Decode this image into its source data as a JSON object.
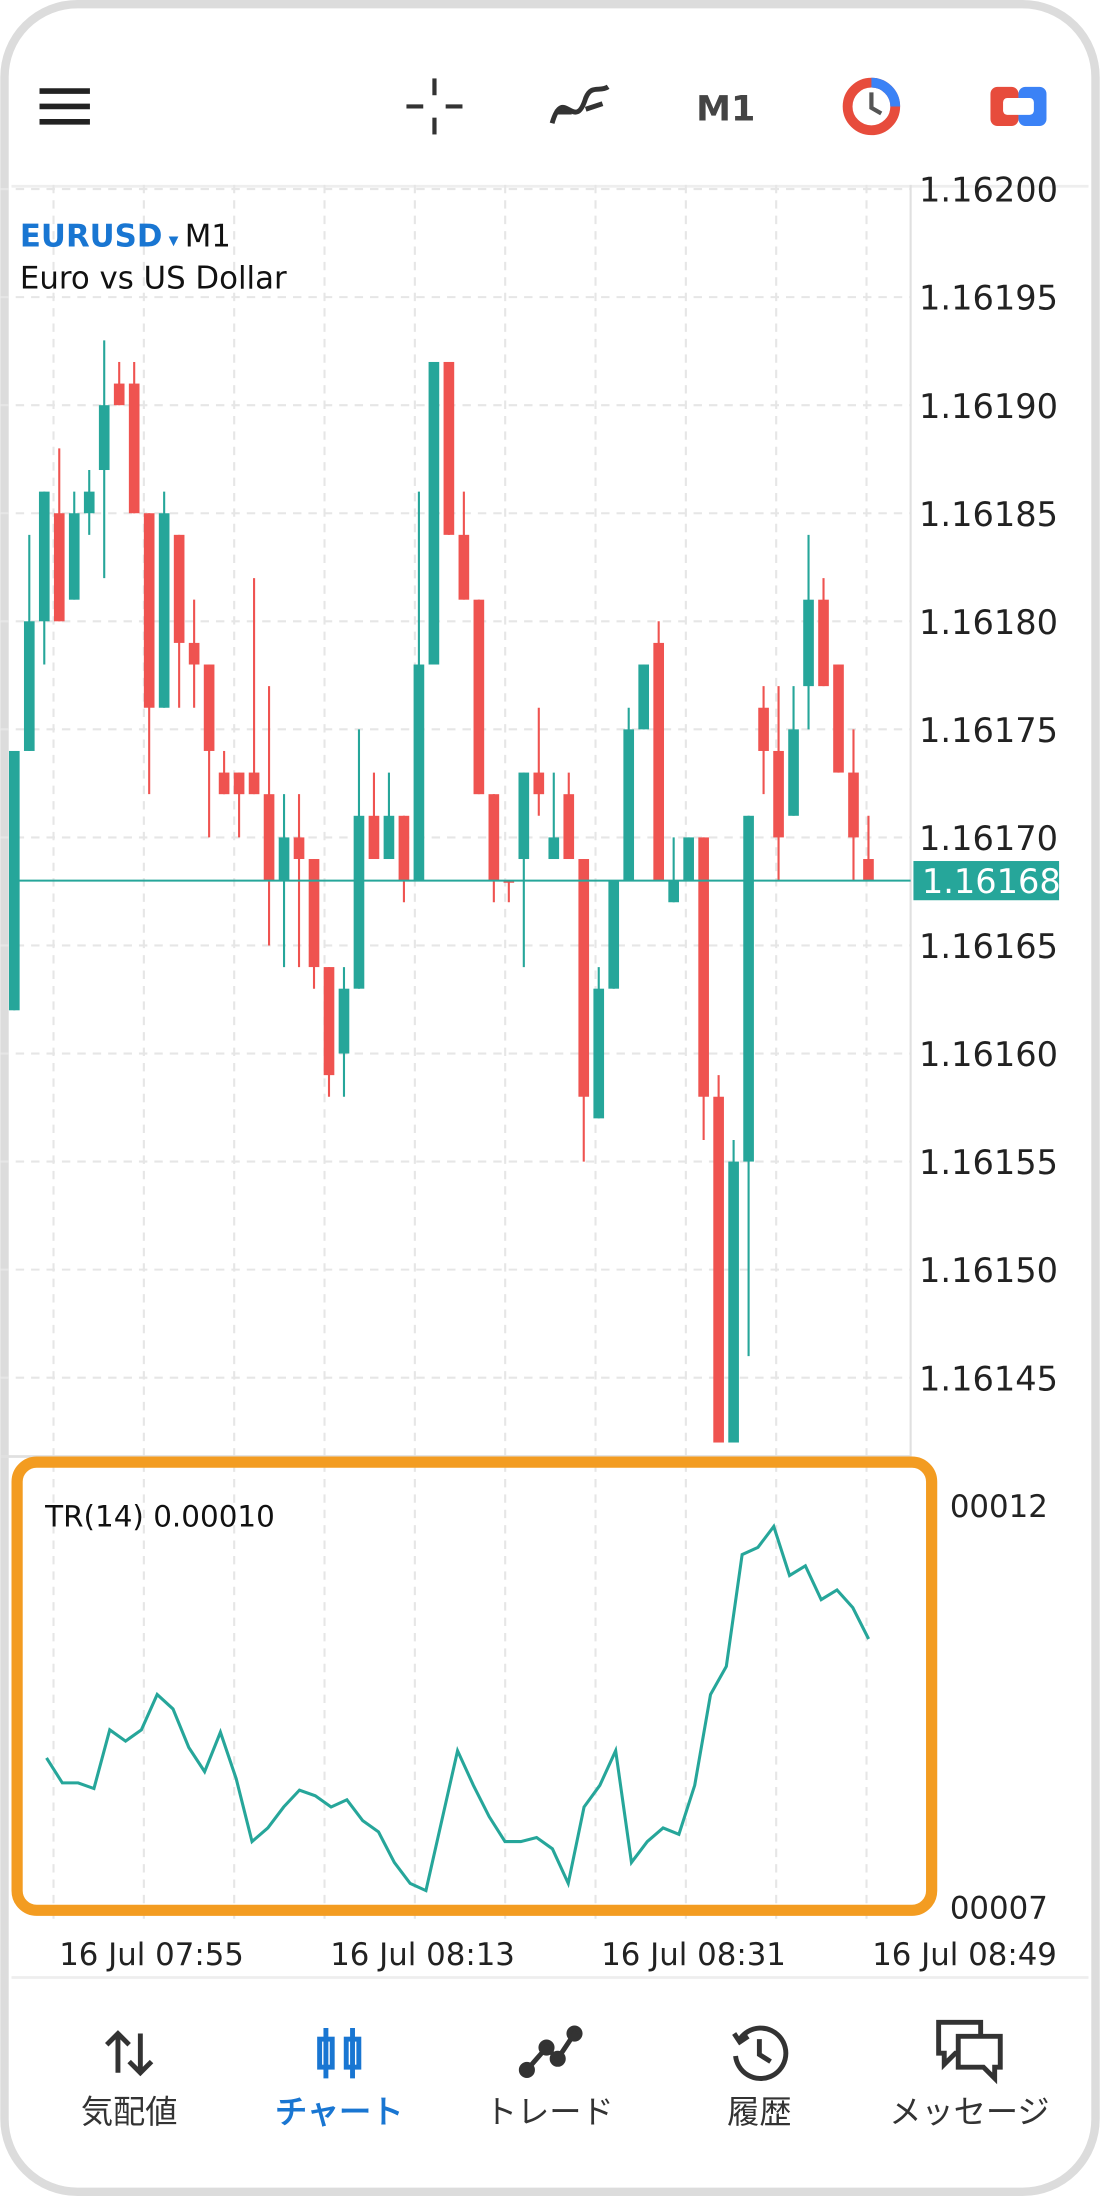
{
  "header": {
    "timeframe": "M1"
  },
  "chart": {
    "type": "candlestick",
    "symbol": "EURUSD",
    "timeframe": "M1",
    "description": "Euro vs US Dollar",
    "up_color": "#26a69a",
    "down_color": "#ef5350",
    "open": [
      1.16162,
      1.16174,
      1.1618,
      1.16185,
      1.16181,
      1.16185,
      1.16187,
      1.16191,
      1.16191,
      1.16185,
      1.16176,
      1.16184,
      1.16179,
      1.16178,
      1.16173,
      1.16173,
      1.16173,
      1.16172,
      1.16168,
      1.1617,
      1.16169,
      1.16164,
      1.1616,
      1.16163,
      1.16171,
      1.16169,
      1.16171,
      1.16168,
      1.16178,
      1.16192,
      1.16184,
      1.16181,
      1.16172,
      1.16168,
      1.16169,
      1.16173,
      1.16169,
      1.16172,
      1.16169,
      1.16157,
      1.16163,
      1.16168,
      1.16175,
      1.16179,
      1.16167,
      1.16168,
      1.1617,
      1.16158,
      1.16142,
      1.16155,
      1.16176,
      1.16174,
      1.16171,
      1.16177,
      1.16181,
      1.16178,
      1.16173,
      1.16169
    ],
    "high": [
      1.16174,
      1.16184,
      1.16186,
      1.16188,
      1.16186,
      1.16187,
      1.16193,
      1.16192,
      1.16192,
      1.16185,
      1.16186,
      1.16184,
      1.16181,
      1.16178,
      1.16174,
      1.16173,
      1.16182,
      1.16177,
      1.16172,
      1.16172,
      1.16169,
      1.16164,
      1.16164,
      1.16175,
      1.16173,
      1.16173,
      1.16171,
      1.16186,
      1.16192,
      1.16192,
      1.16186,
      1.16181,
      1.16172,
      1.16168,
      1.16173,
      1.16176,
      1.16173,
      1.16173,
      1.16169,
      1.16164,
      1.16168,
      1.16176,
      1.16178,
      1.1618,
      1.1617,
      1.1617,
      1.1617,
      1.16159,
      1.16156,
      1.16171,
      1.16177,
      1.16177,
      1.16177,
      1.16184,
      1.16182,
      1.16178,
      1.16175,
      1.16171
    ],
    "low": [
      1.16162,
      1.16174,
      1.16178,
      1.1618,
      1.16181,
      1.16184,
      1.16182,
      1.1619,
      1.16185,
      1.16172,
      1.16176,
      1.16176,
      1.16176,
      1.1617,
      1.16172,
      1.1617,
      1.16172,
      1.16165,
      1.16164,
      1.16164,
      1.16163,
      1.16158,
      1.16158,
      1.16163,
      1.16169,
      1.16169,
      1.16167,
      1.16168,
      1.16178,
      1.16184,
      1.16181,
      1.16172,
      1.16167,
      1.16167,
      1.16164,
      1.16171,
      1.16169,
      1.16169,
      1.16155,
      1.16157,
      1.16163,
      1.16168,
      1.16175,
      1.16168,
      1.16167,
      1.16168,
      1.16156,
      1.16142,
      1.16142,
      1.16146,
      1.16172,
      1.16168,
      1.16171,
      1.16175,
      1.16177,
      1.16173,
      1.16168,
      1.16168
    ],
    "close": [
      1.16174,
      1.1618,
      1.16186,
      1.1618,
      1.16185,
      1.16186,
      1.1619,
      1.1619,
      1.16185,
      1.16176,
      1.16185,
      1.16179,
      1.16178,
      1.16174,
      1.16172,
      1.16172,
      1.16172,
      1.16168,
      1.1617,
      1.16169,
      1.16164,
      1.16159,
      1.16163,
      1.16171,
      1.16169,
      1.16171,
      1.16168,
      1.16178,
      1.16192,
      1.16184,
      1.16181,
      1.16172,
      1.16168,
      1.16168,
      1.16173,
      1.16172,
      1.1617,
      1.16169,
      1.16158,
      1.16163,
      1.16168,
      1.16175,
      1.16178,
      1.16168,
      1.16168,
      1.1617,
      1.16158,
      1.16142,
      1.16155,
      1.16171,
      1.16174,
      1.1617,
      1.16175,
      1.16181,
      1.16177,
      1.16173,
      1.1617,
      1.16168
    ],
    "ylim": [
      1.16142,
      1.162
    ],
    "yticks": [
      {
        "value": 1.162,
        "label": "1.16200"
      },
      {
        "value": 1.16195,
        "label": "1.16195"
      },
      {
        "value": 1.1619,
        "label": "1.16190"
      },
      {
        "value": 1.16185,
        "label": "1.16185"
      },
      {
        "value": 1.1618,
        "label": "1.16180"
      },
      {
        "value": 1.16175,
        "label": "1.16175"
      },
      {
        "value": 1.1617,
        "label": "1.16170"
      },
      {
        "value": 1.16165,
        "label": "1.16165"
      },
      {
        "value": 1.1616,
        "label": "1.16160"
      },
      {
        "value": 1.16155,
        "label": "1.16155"
      },
      {
        "value": 1.1615,
        "label": "1.16150"
      },
      {
        "value": 1.16145,
        "label": "1.16145"
      }
    ],
    "last_price": {
      "value": 1.16168,
      "label": "1.16168"
    },
    "last_price_color": "#26a69a",
    "grid": true
  },
  "indicator": {
    "type": "line",
    "title": "TR(14) 0.00010",
    "color": "#26a69a",
    "values": [
      8.86e-05,
      8.55e-05,
      8.55e-05,
      8.48e-05,
      9.21e-05,
      9.07e-05,
      9.21e-05,
      9.65e-05,
      9.47e-05,
      8.99e-05,
      8.69e-05,
      9.18e-05,
      8.6e-05,
      7.82e-05,
      7.99e-05,
      8.25e-05,
      8.46e-05,
      8.39e-05,
      8.25e-05,
      8.34e-05,
      8.08e-05,
      7.94e-05,
      7.56e-05,
      7.3e-05,
      7.21e-05,
      8.08e-05,
      8.95e-05,
      8.52e-05,
      8.13e-05,
      7.82e-05,
      7.82e-05,
      7.87e-05,
      7.73e-05,
      7.3e-05,
      8.25e-05,
      8.52e-05,
      8.95e-05,
      7.56e-05,
      7.82e-05,
      7.99e-05,
      7.91e-05,
      8.52e-05,
      9.65e-05,
      0.0001,
      0.0001139,
      0.0001148,
      0.0001174,
      0.0001113,
      0.0001125,
      0.0001083,
      0.0001095,
      0.0001073,
      0.0001034
    ],
    "ylim": [
      7e-05,
      0.00012
    ],
    "yticks": [
      {
        "value": 0.00012,
        "label": "00012"
      },
      {
        "value": 7e-05,
        "label": "00007"
      }
    ]
  },
  "time_labels": [
    "16 Jul 07:55",
    "16 Jul 08:13",
    "16 Jul 08:31",
    "16 Jul 08:49"
  ],
  "nav": {
    "active": 1,
    "items": [
      "気配値",
      "チャート",
      "トレード",
      "履歴",
      "メッセージ"
    ]
  }
}
